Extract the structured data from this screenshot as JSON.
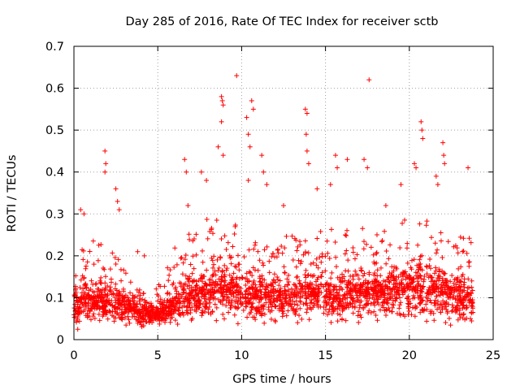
{
  "chart_data": {
    "type": "scatter",
    "title": "Day 285 of 2016, Rate Of TEC Index for receiver sctb",
    "xlabel": "GPS time / hours",
    "ylabel": "ROTI / TECUs",
    "xlim": [
      0,
      25
    ],
    "ylim": [
      0,
      0.7
    ],
    "x_ticks": [
      0,
      5,
      10,
      15,
      20,
      25
    ],
    "x_tick_labels": [
      "0",
      "5",
      "10",
      "15",
      "20",
      "25"
    ],
    "y_ticks": [
      0,
      0.1,
      0.2,
      0.3,
      0.4,
      0.5,
      0.6,
      0.7
    ],
    "y_tick_labels": [
      "0",
      "0.1",
      "0.2",
      "0.3",
      "0.4",
      "0.5",
      "0.6",
      "0.7"
    ],
    "grid": true,
    "marker": "plus",
    "marker_color": "#ff0000",
    "series": [
      {
        "name": "ROTI",
        "sampling_note": "dense overlapping point cloud; envelope estimated from figure",
        "x_range": [
          0,
          23.8
        ],
        "envelope_hours": [
          0,
          1,
          2,
          3,
          4,
          5,
          6,
          7,
          8,
          9,
          10,
          11,
          12,
          13,
          14,
          15,
          16,
          17,
          18,
          19,
          20,
          21,
          22,
          23,
          23.8
        ],
        "envelope_low": [
          0.02,
          0.02,
          0.02,
          0.02,
          0.02,
          0.03,
          0.03,
          0.03,
          0.03,
          0.03,
          0.03,
          0.03,
          0.03,
          0.03,
          0.03,
          0.03,
          0.03,
          0.03,
          0.03,
          0.03,
          0.03,
          0.03,
          0.02,
          0.02,
          0.02
        ],
        "envelope_mid": [
          0.08,
          0.09,
          0.09,
          0.08,
          0.06,
          0.06,
          0.08,
          0.1,
          0.11,
          0.12,
          0.11,
          0.1,
          0.1,
          0.1,
          0.11,
          0.1,
          0.1,
          0.11,
          0.11,
          0.11,
          0.12,
          0.12,
          0.11,
          0.1,
          0.09
        ],
        "envelope_high": [
          0.2,
          0.24,
          0.22,
          0.18,
          0.12,
          0.13,
          0.22,
          0.26,
          0.3,
          0.28,
          0.27,
          0.25,
          0.24,
          0.25,
          0.25,
          0.27,
          0.26,
          0.27,
          0.27,
          0.28,
          0.3,
          0.29,
          0.27,
          0.26,
          0.24
        ],
        "outliers": [
          {
            "x": 0.4,
            "y": 0.31
          },
          {
            "x": 0.6,
            "y": 0.3
          },
          {
            "x": 1.85,
            "y": 0.45
          },
          {
            "x": 1.9,
            "y": 0.42
          },
          {
            "x": 1.85,
            "y": 0.4
          },
          {
            "x": 2.5,
            "y": 0.36
          },
          {
            "x": 2.6,
            "y": 0.33
          },
          {
            "x": 2.7,
            "y": 0.31
          },
          {
            "x": 3.8,
            "y": 0.21
          },
          {
            "x": 4.2,
            "y": 0.2
          },
          {
            "x": 6.6,
            "y": 0.43
          },
          {
            "x": 6.7,
            "y": 0.4
          },
          {
            "x": 6.8,
            "y": 0.32
          },
          {
            "x": 7.6,
            "y": 0.4
          },
          {
            "x": 7.9,
            "y": 0.38
          },
          {
            "x": 8.6,
            "y": 0.46
          },
          {
            "x": 8.8,
            "y": 0.58
          },
          {
            "x": 8.85,
            "y": 0.57
          },
          {
            "x": 8.9,
            "y": 0.56
          },
          {
            "x": 8.8,
            "y": 0.52
          },
          {
            "x": 8.9,
            "y": 0.44
          },
          {
            "x": 9.7,
            "y": 0.63
          },
          {
            "x": 10.3,
            "y": 0.53
          },
          {
            "x": 10.4,
            "y": 0.49
          },
          {
            "x": 10.5,
            "y": 0.46
          },
          {
            "x": 10.6,
            "y": 0.57
          },
          {
            "x": 10.7,
            "y": 0.55
          },
          {
            "x": 10.4,
            "y": 0.38
          },
          {
            "x": 11.2,
            "y": 0.44
          },
          {
            "x": 11.3,
            "y": 0.4
          },
          {
            "x": 11.5,
            "y": 0.37
          },
          {
            "x": 12.5,
            "y": 0.32
          },
          {
            "x": 13.8,
            "y": 0.55
          },
          {
            "x": 13.9,
            "y": 0.54
          },
          {
            "x": 13.85,
            "y": 0.49
          },
          {
            "x": 13.9,
            "y": 0.45
          },
          {
            "x": 14.0,
            "y": 0.42
          },
          {
            "x": 14.5,
            "y": 0.36
          },
          {
            "x": 15.3,
            "y": 0.37
          },
          {
            "x": 15.6,
            "y": 0.44
          },
          {
            "x": 15.7,
            "y": 0.41
          },
          {
            "x": 16.3,
            "y": 0.43
          },
          {
            "x": 17.3,
            "y": 0.43
          },
          {
            "x": 17.5,
            "y": 0.41
          },
          {
            "x": 17.6,
            "y": 0.62
          },
          {
            "x": 18.6,
            "y": 0.32
          },
          {
            "x": 19.5,
            "y": 0.37
          },
          {
            "x": 20.3,
            "y": 0.42
          },
          {
            "x": 20.4,
            "y": 0.41
          },
          {
            "x": 20.7,
            "y": 0.52
          },
          {
            "x": 20.75,
            "y": 0.5
          },
          {
            "x": 20.8,
            "y": 0.48
          },
          {
            "x": 21.6,
            "y": 0.39
          },
          {
            "x": 21.7,
            "y": 0.37
          },
          {
            "x": 22.0,
            "y": 0.47
          },
          {
            "x": 22.05,
            "y": 0.44
          },
          {
            "x": 22.1,
            "y": 0.42
          },
          {
            "x": 23.5,
            "y": 0.41
          }
        ]
      }
    ]
  }
}
